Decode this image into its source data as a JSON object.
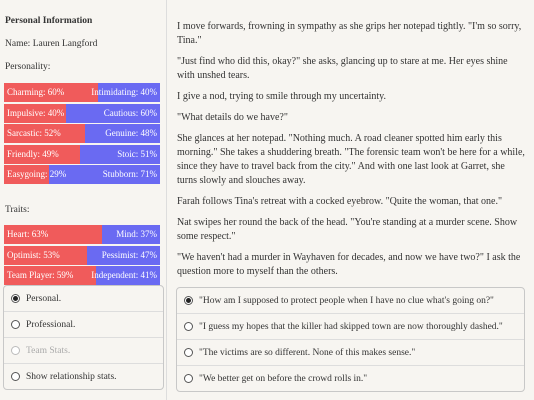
{
  "sidebar": {
    "title": "Personal Information",
    "name": "Name: Lauren Langford",
    "personality_label": "Personality:",
    "personality": [
      {
        "left": "Charming: 60%",
        "right": "Intimidating: 40%",
        "value": 60
      },
      {
        "left": "Impulsive: 40%",
        "right": "Cautious: 60%",
        "value": 40
      },
      {
        "left": "Sarcastic: 52%",
        "right": "Genuine: 48%",
        "value": 52
      },
      {
        "left": "Friendly: 49%",
        "right": "Stoic: 51%",
        "value": 49
      },
      {
        "left": "Easygoing: 29%",
        "right": "Stubborn: 71%",
        "value": 29
      }
    ],
    "traits_label": "Traits:",
    "traits": [
      {
        "left": "Heart: 63%",
        "right": "Mind: 37%",
        "value": 63
      },
      {
        "left": "Optimist: 53%",
        "right": "Pessimist: 47%",
        "value": 53
      },
      {
        "left": "Team Player: 59%",
        "right": "Independent: 41%",
        "value": 59
      }
    ],
    "options": [
      {
        "label": "Personal.",
        "selected": true
      },
      {
        "label": "Professional."
      },
      {
        "label": "Team Stats.",
        "disabled": true
      },
      {
        "label": "Show relationship stats."
      }
    ]
  },
  "story": {
    "paragraphs": [
      "I move forwards, frowning in sympathy as she grips her notepad tightly. \"I'm so sorry, Tina.\"",
      "\"Just find who did this, okay?\" she asks, glancing up to stare at me. Her eyes shine with unshed tears.",
      "I give a nod, trying to smile through my uncertainty.",
      "\"What details do we have?\"",
      "She glances at her notepad. \"Nothing much. A road cleaner spotted him early this morning.\" She takes a shuddering breath. \"The forensic team won't be here for a while, since they have to travel back from the city.\" And with one last look at Garret, she turns slowly and slouches away.",
      "Farah follows Tina's retreat with a cocked eyebrow. \"Quite the woman, that one.\"",
      "Nat swipes her round the back of the head. \"You're standing at a murder scene. Show some respect.\"",
      "\"We haven't had a murder in Wayhaven for decades, and now we have two?\" I ask the question more to myself than the others."
    ]
  },
  "choices": [
    {
      "label": "\"How am I supposed to protect people when I have no clue what's going on?\"",
      "selected": true
    },
    {
      "label": "\"I guess my hopes that the killer had skipped town are now thoroughly dashed.\""
    },
    {
      "label": "\"The victims are so different. None of this makes sense.\""
    },
    {
      "label": "\"We better get on before the crowd rolls in.\""
    }
  ]
}
